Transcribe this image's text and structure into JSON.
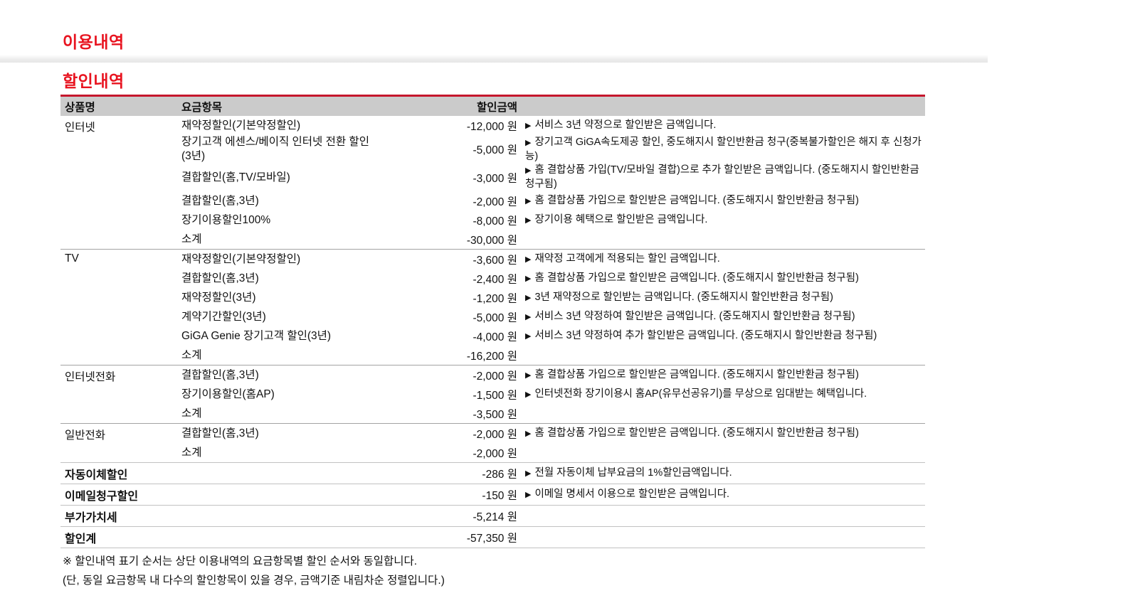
{
  "page": {
    "usage_title": "이용내역",
    "discount_title": "할인내역"
  },
  "colors": {
    "accent": "#e8131f",
    "border_red": "#c5162c",
    "header_bg": "#cbcbcb"
  },
  "table": {
    "marker": "▶",
    "columns": [
      "상품명",
      "요금항목",
      "할인금액"
    ],
    "groups": [
      {
        "product": "인터넷",
        "rows": [
          {
            "item": "재약정할인(기본약정할인)",
            "amount": "-12,000 원",
            "desc": "서비스 3년 약정으로 할인받은 금액입니다."
          },
          {
            "item": "장기고객 에센스/베이직 인터넷 전환 할인(3년)",
            "amount": "-5,000 원",
            "desc": "장기고객 GiGA속도제공 할인, 중도해지시 할인반환금 청구(중복불가할인은 해지 후 신청가능)"
          },
          {
            "item": "결합할인(홈,TV/모바일)",
            "amount": "-3,000 원",
            "desc": "홈 결합상품 가입(TV/모바일 결합)으로 추가 할인받은 금액입니다. (중도해지시 할인반환금 청구됨)"
          },
          {
            "item": "결합할인(홈,3년)",
            "amount": "-2,000 원",
            "desc": "홈 결합상품 가입으로 할인받은 금액입니다. (중도해지시 할인반환금 청구됨)"
          },
          {
            "item": "장기이용할인100%",
            "amount": "-8,000 원",
            "desc": "장기이용 혜택으로 할인받은 금액입니다."
          },
          {
            "item": "소계",
            "amount": "-30,000 원",
            "desc": ""
          }
        ]
      },
      {
        "product": "TV",
        "rows": [
          {
            "item": "재약정할인(기본약정할인)",
            "amount": "-3,600 원",
            "desc": "재약정 고객에게 적용되는 할인 금액입니다."
          },
          {
            "item": "결합할인(홈,3년)",
            "amount": "-2,400 원",
            "desc": "홈 결합상품 가입으로 할인받은 금액입니다. (중도해지시 할인반환금 청구됨)"
          },
          {
            "item": "재약정할인(3년)",
            "amount": "-1,200 원",
            "desc": "3년 재약정으로 할인받는 금액입니다. (중도해지시 할인반환금 청구됨)"
          },
          {
            "item": "계약기간할인(3년)",
            "amount": "-5,000 원",
            "desc": "서비스 3년 약정하여 할인받은 금액입니다. (중도해지시 할인반환금 청구됨)"
          },
          {
            "item": "GiGA Genie 장기고객 할인(3년)",
            "amount": "-4,000 원",
            "desc": "서비스 3년 약정하여 추가 할인받은 금액입니다. (중도해지시 할인반환금 청구됨)"
          },
          {
            "item": "소계",
            "amount": "-16,200 원",
            "desc": ""
          }
        ]
      },
      {
        "product": "인터넷전화",
        "rows": [
          {
            "item": "결합할인(홈,3년)",
            "amount": "-2,000 원",
            "desc": "홈 결합상품 가입으로 할인받은 금액입니다. (중도해지시 할인반환금 청구됨)"
          },
          {
            "item": "장기이용할인(홈AP)",
            "amount": "-1,500 원",
            "desc": "인터넷전화 장기이용시 홈AP(유무선공유기)를 무상으로 임대받는 혜택입니다."
          },
          {
            "item": "소계",
            "amount": "-3,500 원",
            "desc": ""
          }
        ]
      },
      {
        "product": "일반전화",
        "rows": [
          {
            "item": "결합할인(홈,3년)",
            "amount": "-2,000 원",
            "desc": "홈 결합상품 가입으로 할인받은 금액입니다. (중도해지시 할인반환금 청구됨)"
          },
          {
            "item": "소계",
            "amount": "-2,000 원",
            "desc": ""
          }
        ]
      }
    ],
    "summary_rows": [
      {
        "label": "자동이체할인",
        "amount": "-286 원",
        "desc": "전월 자동이체 납부요금의 1%할인금액입니다."
      },
      {
        "label": "이메일청구할인",
        "amount": "-150 원",
        "desc": "이메일 명세서 이용으로 할인받은 금액입니다."
      },
      {
        "label": "부가가치세",
        "amount": "-5,214 원",
        "desc": ""
      },
      {
        "label": "할인계",
        "amount": "-57,350 원",
        "desc": ""
      }
    ]
  },
  "footnotes": [
    "※ 할인내역 표기 순서는 상단 이용내역의 요금항목별 할인 순서와 동일합니다.",
    "(단, 동일 요금항목 내 다수의 할인항목이 있을 경우, 금액기준 내림차순 정렬입니다.)"
  ]
}
